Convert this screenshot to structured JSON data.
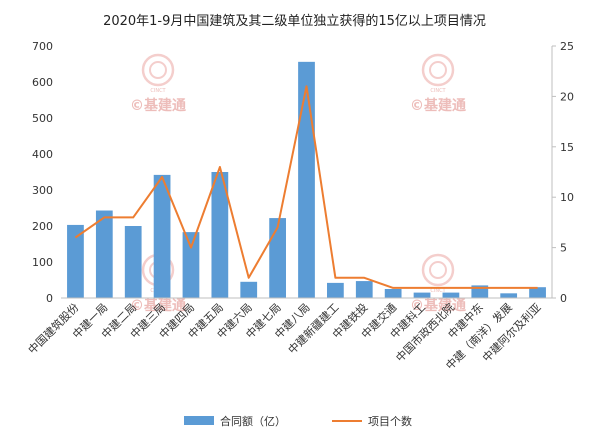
{
  "chart_data": {
    "type": "bar",
    "title": "2020年1-9月中国建筑及其二级单位独立获得的15亿以上项目情况",
    "categories": [
      "中国建筑股份",
      "中建一局",
      "中建二局",
      "中建三局",
      "中建四局",
      "中建五局",
      "中建六局",
      "中建七局",
      "中建八局",
      "中建新疆建工",
      "中建铁投",
      "中建交通",
      "中建科工",
      "中国市政西北院",
      "中建中东",
      "中建（南洋）发展",
      "中建阿尔及利亚"
    ],
    "series": [
      {
        "name": "合同额（亿）",
        "kind": "bar",
        "axis": "left",
        "color": "#5b9bd5",
        "values": [
          203,
          243,
          200,
          342,
          183,
          350,
          45,
          222,
          656,
          42,
          47,
          25,
          15,
          15,
          35,
          13,
          30
        ]
      },
      {
        "name": "项目个数",
        "kind": "line",
        "axis": "right",
        "color": "#ed7d31",
        "values": [
          6,
          8,
          8,
          12,
          5,
          13,
          2,
          7,
          21,
          2,
          2,
          1,
          1,
          1,
          1,
          1,
          1
        ]
      }
    ],
    "y_left": {
      "min": 0,
      "max": 700,
      "ticks": [
        0,
        100,
        200,
        300,
        400,
        500,
        600,
        700
      ]
    },
    "y_right": {
      "min": 0,
      "max": 25,
      "ticks": [
        0,
        5,
        10,
        15,
        20,
        25
      ]
    },
    "grid": false,
    "legend": "bottom"
  },
  "watermark": {
    "brand": "CINCT",
    "text": "©基建通"
  }
}
